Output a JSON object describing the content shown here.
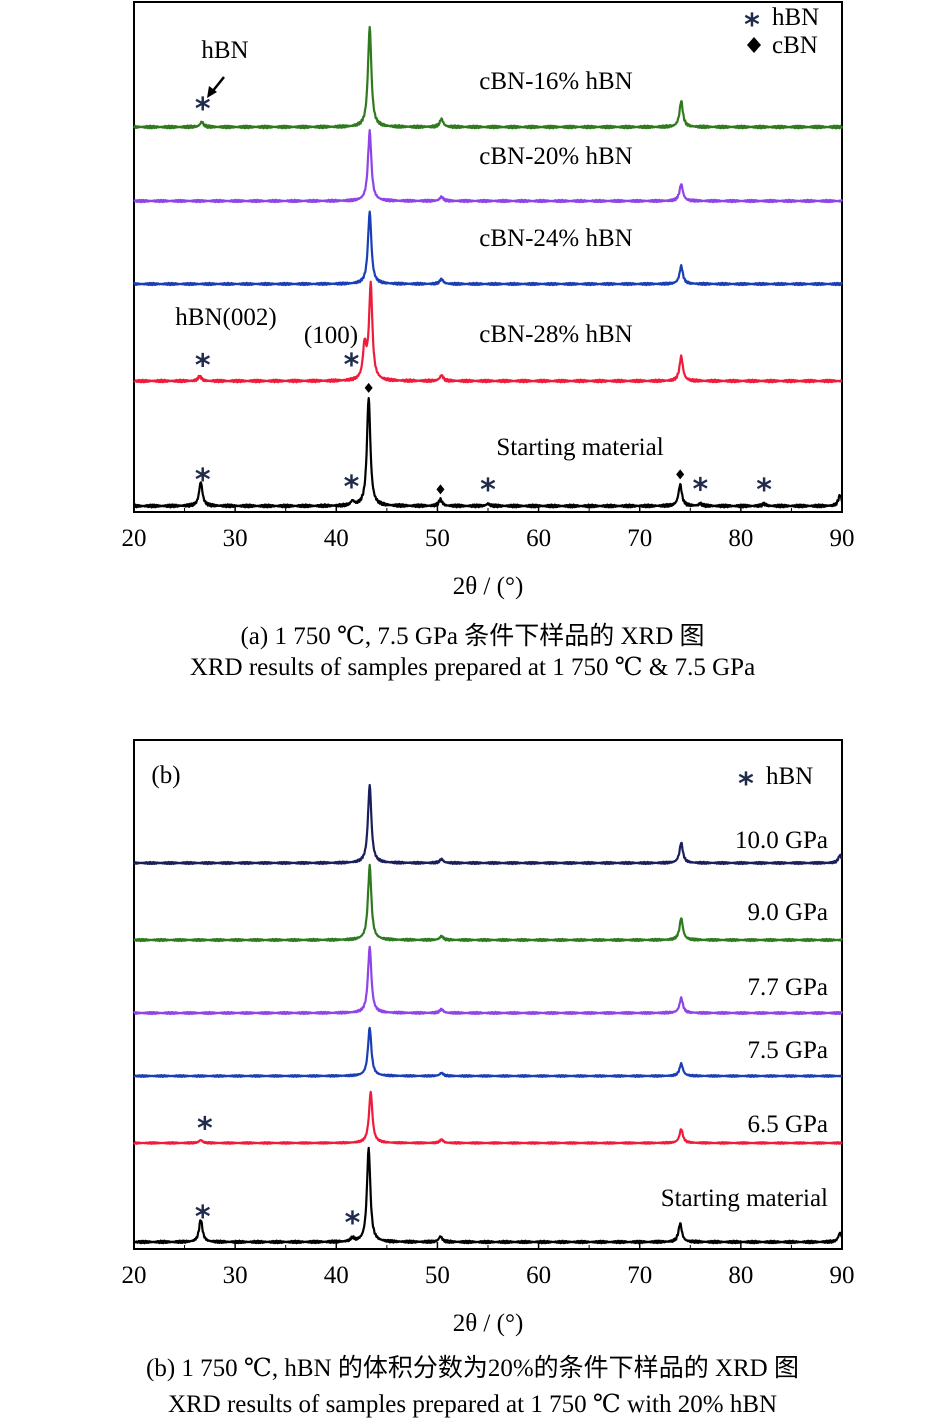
{
  "chart_data": [
    {
      "type": "line",
      "panel_label": "",
      "xlabel": "2θ / (°)",
      "xlim": [
        20,
        90
      ],
      "xticks": [
        20,
        30,
        40,
        50,
        60,
        70,
        80,
        90
      ],
      "yaxis_ticks": false,
      "legend": {
        "placement": "top-right",
        "entries": [
          {
            "marker": "asterisk",
            "label": "hBN"
          },
          {
            "marker": "diamond",
            "label": "cBN"
          }
        ]
      },
      "series": [
        {
          "name": "cBN-16% hBN",
          "color": "#2f7a1f",
          "baseline_offset": 4,
          "peaks": [
            [
              26.7,
              0.05
            ],
            [
              43.3,
              1.0
            ],
            [
              50.4,
              0.08
            ],
            [
              74.1,
              0.26
            ]
          ],
          "markers": [
            {
              "x": 26.8,
              "marker": "asterisk"
            }
          ]
        },
        {
          "name": "cBN-20% hBN",
          "color": "#8e44e6",
          "baseline_offset": 3,
          "peaks": [
            [
              43.3,
              0.82
            ],
            [
              50.4,
              0.05
            ],
            [
              74.1,
              0.2
            ]
          ],
          "markers": []
        },
        {
          "name": "cBN-24% hBN",
          "color": "#1a3fb5",
          "baseline_offset": 2,
          "peaks": [
            [
              43.3,
              0.88
            ],
            [
              50.4,
              0.06
            ],
            [
              74.1,
              0.22
            ]
          ],
          "markers": []
        },
        {
          "name": "cBN-28% hBN",
          "color": "#ee1c3a",
          "baseline_offset": 1,
          "peaks": [
            [
              26.5,
              0.05
            ],
            [
              42.8,
              0.35
            ],
            [
              43.4,
              1.0
            ],
            [
              50.4,
              0.06
            ],
            [
              74.1,
              0.26
            ]
          ],
          "markers": [
            {
              "x": 26.8,
              "marker": "asterisk"
            },
            {
              "x": 41.5,
              "marker": "asterisk"
            }
          ]
        },
        {
          "name": "Starting material",
          "color": "#000000",
          "baseline_offset": 0,
          "peaks": [
            [
              26.6,
              0.22
            ],
            [
              41.6,
              0.04
            ],
            [
              43.2,
              1.0
            ],
            [
              50.3,
              0.06
            ],
            [
              55.0,
              0.02
            ],
            [
              74.0,
              0.2
            ],
            [
              76.0,
              0.02
            ],
            [
              82.3,
              0.02
            ],
            [
              89.8,
              0.1
            ]
          ],
          "markers": [
            {
              "x": 26.8,
              "marker": "asterisk"
            },
            {
              "x": 41.5,
              "marker": "asterisk"
            },
            {
              "x": 43.2,
              "marker": "diamond"
            },
            {
              "x": 50.3,
              "marker": "diamond"
            },
            {
              "x": 55.0,
              "marker": "asterisk"
            },
            {
              "x": 74.0,
              "marker": "diamond"
            },
            {
              "x": 76.0,
              "marker": "asterisk"
            },
            {
              "x": 82.3,
              "marker": "asterisk"
            }
          ]
        }
      ],
      "annotations": [
        {
          "text": "hBN",
          "near_x": 28.5,
          "series": "cBN-16% hBN",
          "with_arrow": true
        },
        {
          "text": "hBN(002)",
          "near_x": 29,
          "series": "cBN-28% hBN"
        },
        {
          "text": "(100)",
          "near_x": 39.3,
          "series": "cBN-28% hBN"
        }
      ],
      "caption_cn": "(a) 1 750 ℃, 7.5 GPa 条件下样品的 XRD 图",
      "caption_en": "XRD results of samples prepared at 1 750 ℃ & 7.5 GPa"
    },
    {
      "type": "line",
      "panel_label": "(b)",
      "xlabel": "2θ / (°)",
      "xlim": [
        20,
        90
      ],
      "xticks": [
        20,
        30,
        40,
        50,
        60,
        70,
        80,
        90
      ],
      "yaxis_ticks": false,
      "legend": {
        "placement": "top-right",
        "entries": [
          {
            "marker": "asterisk",
            "label": "hBN"
          }
        ]
      },
      "series": [
        {
          "name": "10.0 GPa",
          "color": "#1a1f5c",
          "baseline_offset": 5,
          "peaks": [
            [
              43.3,
              1.0
            ],
            [
              50.4,
              0.05
            ],
            [
              74.1,
              0.26
            ],
            [
              89.8,
              0.1
            ]
          ],
          "markers": []
        },
        {
          "name": "9.0 GPa",
          "color": "#2f7a1f",
          "baseline_offset": 4,
          "peaks": [
            [
              43.3,
              0.95
            ],
            [
              50.4,
              0.05
            ],
            [
              74.1,
              0.28
            ]
          ],
          "markers": []
        },
        {
          "name": "7.7 GPa",
          "color": "#8e44e6",
          "baseline_offset": 3,
          "peaks": [
            [
              43.3,
              0.88
            ],
            [
              50.4,
              0.05
            ],
            [
              74.1,
              0.2
            ]
          ],
          "markers": []
        },
        {
          "name": "7.5 GPa",
          "color": "#1a3fb5",
          "baseline_offset": 2,
          "peaks": [
            [
              43.3,
              0.78
            ],
            [
              50.4,
              0.05
            ],
            [
              74.1,
              0.2
            ]
          ],
          "markers": []
        },
        {
          "name": "6.5 GPa",
          "color": "#ee1c3a",
          "baseline_offset": 1,
          "peaks": [
            [
              26.6,
              0.05
            ],
            [
              43.4,
              0.88
            ],
            [
              50.4,
              0.06
            ],
            [
              74.1,
              0.24
            ]
          ],
          "markers": [
            {
              "x": 27.0,
              "marker": "asterisk"
            }
          ]
        },
        {
          "name": "Starting material",
          "color": "#000000",
          "baseline_offset": 0,
          "peaks": [
            [
              26.6,
              0.24
            ],
            [
              41.6,
              0.04
            ],
            [
              43.2,
              1.0
            ],
            [
              50.3,
              0.06
            ],
            [
              74.0,
              0.2
            ],
            [
              89.8,
              0.1
            ]
          ],
          "markers": [
            {
              "x": 26.8,
              "marker": "asterisk"
            },
            {
              "x": 41.6,
              "marker": "asterisk"
            }
          ]
        }
      ],
      "annotations": [],
      "caption_cn": "(b) 1 750 ℃, hBN 的体积分数为20%的条件下样品的 XRD 图",
      "caption_en": "XRD results of samples prepared at 1 750 ℃ with 20% hBN"
    }
  ]
}
